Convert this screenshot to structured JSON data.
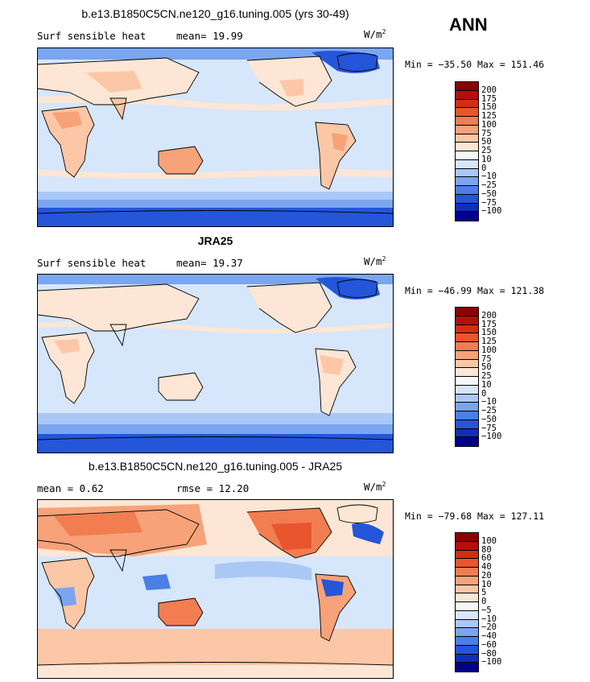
{
  "season": "ANN",
  "panels": [
    {
      "title": "b.e13.B1850C5CN.ne120_g16.tuning.005 (yrs 30-49)",
      "left_label": "Surf sensible heat",
      "mid_label": "mean=  19.99",
      "units_base": "W/m",
      "units_exp": "2",
      "minmax": "Min = −35.50 Max = 151.46",
      "levels": [
        "200",
        "175",
        "150",
        "125",
        "100",
        "75",
        "50",
        "25",
        "10",
        "0",
        "−10",
        "−25",
        "−50",
        "−75",
        "−100"
      ],
      "colors": [
        "#8b0000",
        "#b40e0e",
        "#d32d14",
        "#e8552e",
        "#f27d50",
        "#f7a278",
        "#fcc7a6",
        "#fde6d5",
        "#f7f7f7",
        "#d6e6fb",
        "#a9c8f5",
        "#7aa5ef",
        "#4a7fe6",
        "#2555d8",
        "#0f2fb8",
        "#00008b"
      ]
    },
    {
      "title": "JRA25",
      "left_label": "Surf sensible heat",
      "mid_label": "mean=  19.37",
      "units_base": "W/m",
      "units_exp": "2",
      "minmax": "Min = −46.99 Max = 121.38",
      "levels": [
        "200",
        "175",
        "150",
        "125",
        "100",
        "75",
        "50",
        "25",
        "10",
        "0",
        "−10",
        "−25",
        "−50",
        "−75",
        "−100"
      ],
      "colors": [
        "#8b0000",
        "#b40e0e",
        "#d32d14",
        "#e8552e",
        "#f27d50",
        "#f7a278",
        "#fcc7a6",
        "#fde6d5",
        "#f7f7f7",
        "#d6e6fb",
        "#a9c8f5",
        "#7aa5ef",
        "#4a7fe6",
        "#2555d8",
        "#0f2fb8",
        "#00008b"
      ]
    },
    {
      "title": "b.e13.B1850C5CN.ne120_g16.tuning.005 - JRA25",
      "left_label": "mean =   0.62",
      "mid_label": "rmse =  12.20",
      "units_base": "W/m",
      "units_exp": "2",
      "minmax": "Min = −79.68 Max = 127.11",
      "levels": [
        "100",
        "80",
        "60",
        "40",
        "20",
        "10",
        "5",
        "0",
        "−5",
        "−10",
        "−20",
        "−40",
        "−60",
        "−80",
        "−100"
      ],
      "colors": [
        "#8b0000",
        "#b40e0e",
        "#d32d14",
        "#e8552e",
        "#f27d50",
        "#f7a278",
        "#fcc7a6",
        "#fde6d5",
        "#f7f7f7",
        "#d6e6fb",
        "#a9c8f5",
        "#7aa5ef",
        "#4a7fe6",
        "#2555d8",
        "#0f2fb8",
        "#00008b"
      ]
    }
  ]
}
